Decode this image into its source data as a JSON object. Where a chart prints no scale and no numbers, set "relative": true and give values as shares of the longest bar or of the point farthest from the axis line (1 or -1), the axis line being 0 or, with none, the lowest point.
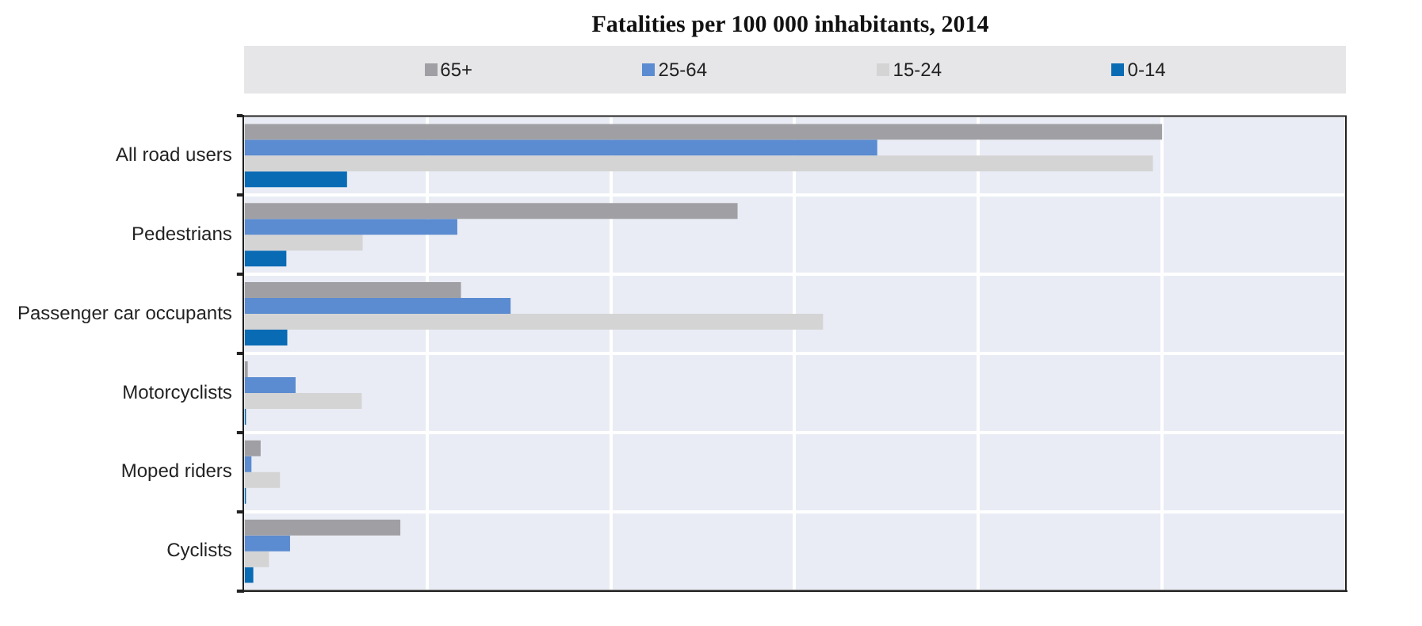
{
  "chart_data": {
    "type": "bar",
    "orientation": "horizontal",
    "relative": true,
    "title": "Fatalities per 100 000 inhabitants, 2014",
    "categories": [
      "All road users",
      "Pedestrians",
      "Passenger car occupants",
      "Motorcyclists",
      "Moped riders",
      "Cyclists"
    ],
    "series": [
      {
        "name": "65+",
        "color": "#a0a0a4",
        "values": [
          1,
          0.538,
          0.237,
          0.005,
          0.019,
          0.171
        ]
      },
      {
        "name": "25-64",
        "color": "#5b8bd0",
        "values": [
          0.69,
          0.233,
          0.291,
          0.057,
          0.009,
          0.051
        ]
      },
      {
        "name": "15-24",
        "color": "#d4d4d4",
        "values": [
          0.99,
          0.13,
          0.631,
          0.129,
          0.04,
          0.028
        ]
      },
      {
        "name": "0-14",
        "color": "#0a6bb5",
        "values": [
          0.113,
          0.047,
          0.048,
          0.003,
          0.003,
          0.011
        ]
      }
    ],
    "legend": "top",
    "grid": true
  }
}
